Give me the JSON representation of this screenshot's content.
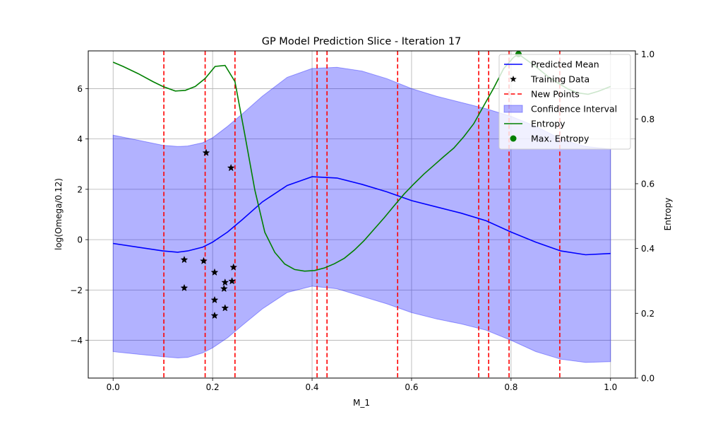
{
  "chart_data": {
    "type": "line",
    "title": "GP Model Prediction Slice - Iteration 17",
    "xlabel": "M_1",
    "ylabel": "log(Omega/0.12)",
    "y2label": "Entropy",
    "xlim": [
      -0.05,
      1.05
    ],
    "ylim": [
      -5.5,
      7.5
    ],
    "y2lim": [
      0.0,
      1.01
    ],
    "xticks": [
      0.0,
      0.2,
      0.4,
      0.6,
      0.8,
      1.0
    ],
    "xtick_labels": [
      "0.0",
      "0.2",
      "0.4",
      "0.6",
      "0.8",
      "1.0"
    ],
    "yticks": [
      -4,
      -2,
      0,
      2,
      4,
      6
    ],
    "ytick_labels": [
      "−4",
      "−2",
      "0",
      "2",
      "4",
      "6"
    ],
    "y2ticks": [
      0.0,
      0.2,
      0.4,
      0.6,
      0.8,
      1.0
    ],
    "y2tick_labels": [
      "0.0",
      "0.2",
      "0.4",
      "0.6",
      "0.8",
      "1.0"
    ],
    "grid": true,
    "legend_position": "top-right",
    "series": [
      {
        "name": "Predicted Mean",
        "color": "#0000ff",
        "axis": "left",
        "x": [
          0.0,
          0.05,
          0.1,
          0.13,
          0.15,
          0.18,
          0.2,
          0.23,
          0.26,
          0.3,
          0.35,
          0.4,
          0.45,
          0.5,
          0.55,
          0.6,
          0.65,
          0.7,
          0.75,
          0.8,
          0.85,
          0.9,
          0.95,
          1.0
        ],
        "y": [
          -0.15,
          -0.3,
          -0.45,
          -0.5,
          -0.45,
          -0.3,
          -0.1,
          0.3,
          0.8,
          1.5,
          2.15,
          2.5,
          2.45,
          2.2,
          1.9,
          1.55,
          1.3,
          1.05,
          0.75,
          0.3,
          -0.1,
          -0.45,
          -0.6,
          -0.55
        ]
      },
      {
        "name": "Confidence Interval",
        "color": "#0000ff",
        "fill_opacity": 0.3,
        "axis": "left",
        "x": [
          0.0,
          0.05,
          0.1,
          0.13,
          0.15,
          0.18,
          0.2,
          0.23,
          0.26,
          0.3,
          0.35,
          0.4,
          0.45,
          0.5,
          0.55,
          0.6,
          0.65,
          0.7,
          0.75,
          0.8,
          0.85,
          0.9,
          0.95,
          1.0
        ],
        "upper": [
          4.15,
          3.95,
          3.75,
          3.7,
          3.72,
          3.85,
          4.05,
          4.5,
          5.0,
          5.7,
          6.45,
          6.8,
          6.85,
          6.7,
          6.4,
          6.0,
          5.7,
          5.45,
          5.2,
          4.9,
          4.5,
          4.0,
          3.7,
          3.6
        ],
        "lower": [
          -4.45,
          -4.55,
          -4.65,
          -4.7,
          -4.68,
          -4.5,
          -4.3,
          -3.9,
          -3.4,
          -2.75,
          -2.1,
          -1.85,
          -1.95,
          -2.25,
          -2.55,
          -2.9,
          -3.15,
          -3.35,
          -3.6,
          -4.0,
          -4.45,
          -4.75,
          -4.88,
          -4.85
        ]
      },
      {
        "name": "Entropy",
        "color": "#008000",
        "axis": "right",
        "x": [
          0.0,
          0.02,
          0.05,
          0.08,
          0.1,
          0.125,
          0.145,
          0.165,
          0.185,
          0.205,
          0.225,
          0.245,
          0.265,
          0.285,
          0.305,
          0.325,
          0.345,
          0.365,
          0.385,
          0.405,
          0.425,
          0.445,
          0.465,
          0.485,
          0.505,
          0.525,
          0.545,
          0.565,
          0.585,
          0.605,
          0.625,
          0.645,
          0.665,
          0.685,
          0.705,
          0.725,
          0.745,
          0.765,
          0.785,
          0.805,
          0.815,
          0.835,
          0.855,
          0.875,
          0.895,
          0.915,
          0.935,
          0.955,
          0.975,
          1.0
        ],
        "y": [
          0.975,
          0.962,
          0.94,
          0.915,
          0.9,
          0.886,
          0.888,
          0.9,
          0.925,
          0.962,
          0.965,
          0.915,
          0.75,
          0.58,
          0.45,
          0.388,
          0.352,
          0.335,
          0.33,
          0.332,
          0.34,
          0.353,
          0.37,
          0.395,
          0.425,
          0.46,
          0.495,
          0.532,
          0.568,
          0.6,
          0.63,
          0.657,
          0.684,
          0.71,
          0.745,
          0.785,
          0.84,
          0.895,
          0.955,
          0.99,
          1.0,
          0.978,
          0.955,
          0.93,
          0.91,
          0.892,
          0.88,
          0.876,
          0.885,
          0.9
        ]
      }
    ],
    "training_data": {
      "name": "Training Data",
      "color": "#000000",
      "marker": "star",
      "x": [
        0.187,
        0.237,
        0.143,
        0.182,
        0.242,
        0.204,
        0.239,
        0.225,
        0.143,
        0.223,
        0.204,
        0.225,
        0.204
      ],
      "y": [
        3.45,
        2.85,
        -0.8,
        -0.85,
        -1.1,
        -1.3,
        -1.65,
        -1.7,
        -1.92,
        -1.95,
        -2.4,
        -2.72,
        -3.02
      ]
    },
    "new_points": {
      "name": "New Points",
      "color": "#ff0000",
      "style": "dashed",
      "x": [
        0.102,
        0.185,
        0.245,
        0.41,
        0.43,
        0.572,
        0.735,
        0.755,
        0.796,
        0.898
      ]
    },
    "max_entropy": {
      "name": "Max. Entropy",
      "color": "#008000",
      "marker": "circle",
      "x": 0.815,
      "y": 1.0
    },
    "legend": [
      {
        "label": "Predicted Mean",
        "kind": "line",
        "color": "#0000ff"
      },
      {
        "label": "Training Data",
        "kind": "star",
        "color": "#000000"
      },
      {
        "label": "New Points",
        "kind": "dashed",
        "color": "#ff0000"
      },
      {
        "label": "Confidence Interval",
        "kind": "patch",
        "color": "#0000ff"
      },
      {
        "label": "Entropy",
        "kind": "line",
        "color": "#008000"
      },
      {
        "label": "Max. Entropy",
        "kind": "circle",
        "color": "#008000"
      }
    ]
  }
}
